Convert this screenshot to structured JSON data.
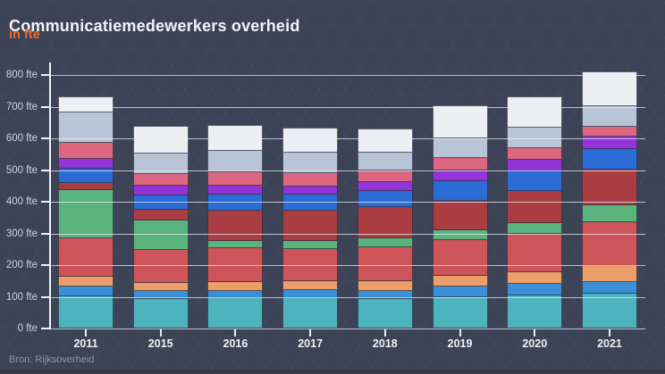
{
  "header": {
    "title": "Communicatiemedewerkers overheid",
    "subtitle": "in fte"
  },
  "footer": {
    "source": "Bron: Rijksoverheid"
  },
  "colors": {
    "background": "#3c4356",
    "title_text": "#f2f4f8",
    "subtitle_accent": "#ef6c30",
    "axis_text": "#ccd3e0",
    "gridline": "#ecf1f8",
    "source_text": "#8d96a9"
  },
  "chart_data": {
    "type": "bar",
    "stacked": true,
    "title": "Communicatiemedewerkers overheid",
    "subtitle": "in fte",
    "unit": "fte",
    "xlabel": "",
    "ylabel": "fte",
    "ylim": [
      0,
      840
    ],
    "grid": true,
    "legend": false,
    "categories": [
      "2011",
      "2015",
      "2016",
      "2017",
      "2018",
      "2019",
      "2020",
      "2021"
    ],
    "y_axis_labels": [
      "0 fte",
      "100 fte",
      "200 fte",
      "300 fte",
      "400 fte",
      "500 fte",
      "600 fte",
      "700 fte",
      "800 fte"
    ],
    "series": [
      {
        "name": "segment-1-teal",
        "color": "#4db3bc",
        "values": [
          100,
          93,
          95,
          95,
          93,
          98,
          105,
          109
        ]
      },
      {
        "name": "segment-2-light-blue",
        "color": "#3a90d8",
        "values": [
          31,
          25,
          23,
          26,
          25,
          35,
          36,
          38
        ]
      },
      {
        "name": "segment-3-orange",
        "color": "#eb9e67",
        "values": [
          32,
          26,
          29,
          28,
          31,
          34,
          35,
          50
        ]
      },
      {
        "name": "segment-4-red",
        "color": "#cd5458",
        "values": [
          122,
          105,
          107,
          101,
          108,
          113,
          122,
          138
        ]
      },
      {
        "name": "segment-5-green",
        "color": "#5bb47d",
        "values": [
          151,
          92,
          22,
          27,
          28,
          30,
          33,
          54
        ]
      },
      {
        "name": "segment-6-dark-red",
        "color": "#aa3d42",
        "values": [
          23,
          33,
          96,
          94,
          99,
          92,
          103,
          113
        ]
      },
      {
        "name": "segment-7-royal-blue",
        "color": "#2b6cd6",
        "values": [
          45,
          47,
          50,
          52,
          50,
          63,
          63,
          63
        ]
      },
      {
        "name": "segment-8-purple",
        "color": "#9334d8",
        "values": [
          30,
          31,
          30,
          26,
          28,
          33,
          34,
          41
        ]
      },
      {
        "name": "segment-9-pink",
        "color": "#dd6681",
        "values": [
          53,
          35,
          42,
          42,
          36,
          40,
          38,
          30
        ]
      },
      {
        "name": "segment-10-gray",
        "color": "#b9c4d7",
        "values": [
          94,
          66,
          66,
          64,
          57,
          62,
          65,
          66
        ]
      },
      {
        "name": "segment-11-white",
        "color": "#edeff3",
        "values": [
          52,
          86,
          83,
          79,
          77,
          105,
          97,
          110
        ]
      }
    ],
    "totals": [
      733,
      639,
      643,
      634,
      632,
      705,
      731,
      812
    ]
  }
}
